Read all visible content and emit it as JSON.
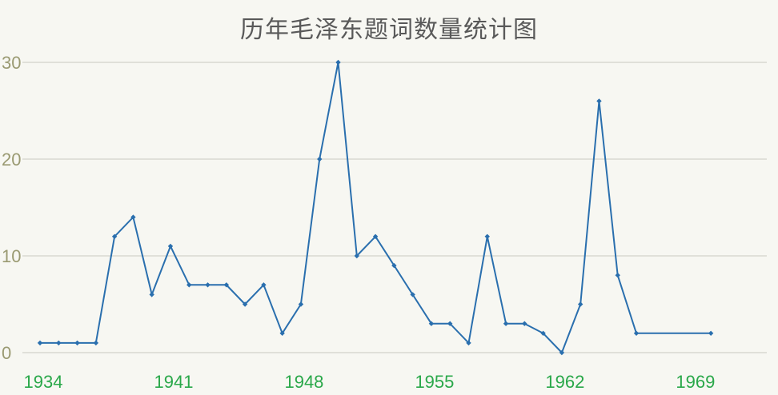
{
  "chart_data": {
    "type": "line",
    "title": "历年毛泽东题词数量统计图",
    "xlabel": "",
    "ylabel": "",
    "x": [
      1934,
      1935,
      1936,
      1937,
      1938,
      1939,
      1940,
      1941,
      1942,
      1943,
      1944,
      1945,
      1946,
      1947,
      1948,
      1949,
      1950,
      1951,
      1952,
      1953,
      1954,
      1955,
      1956,
      1957,
      1958,
      1959,
      1960,
      1961,
      1962,
      1963,
      1964,
      1965,
      1966,
      1970
    ],
    "series": [
      {
        "name": "",
        "values": [
          1,
          1,
          1,
          1,
          12,
          14,
          6,
          11,
          7,
          7,
          7,
          5,
          7,
          2,
          5,
          20,
          30,
          10,
          12,
          9,
          6,
          3,
          3,
          1,
          12,
          3,
          3,
          2,
          0,
          5,
          26,
          8,
          2,
          2
        ]
      }
    ],
    "xlim": [
      1934,
      1973
    ],
    "ylim": [
      0,
      30
    ],
    "x_ticks": [
      "1934",
      "1941",
      "1948",
      "1955",
      "1962",
      "1969"
    ],
    "y_ticks": [
      "0",
      "10",
      "20",
      "30"
    ],
    "grid": "horizontal",
    "legend": "none",
    "colors": {
      "line": "#2a6fae",
      "x_tick_text": "#2aa84a",
      "y_tick_text": "#9a9a72",
      "grid": "#c8c8c0",
      "background": "#f7f7f2"
    }
  }
}
